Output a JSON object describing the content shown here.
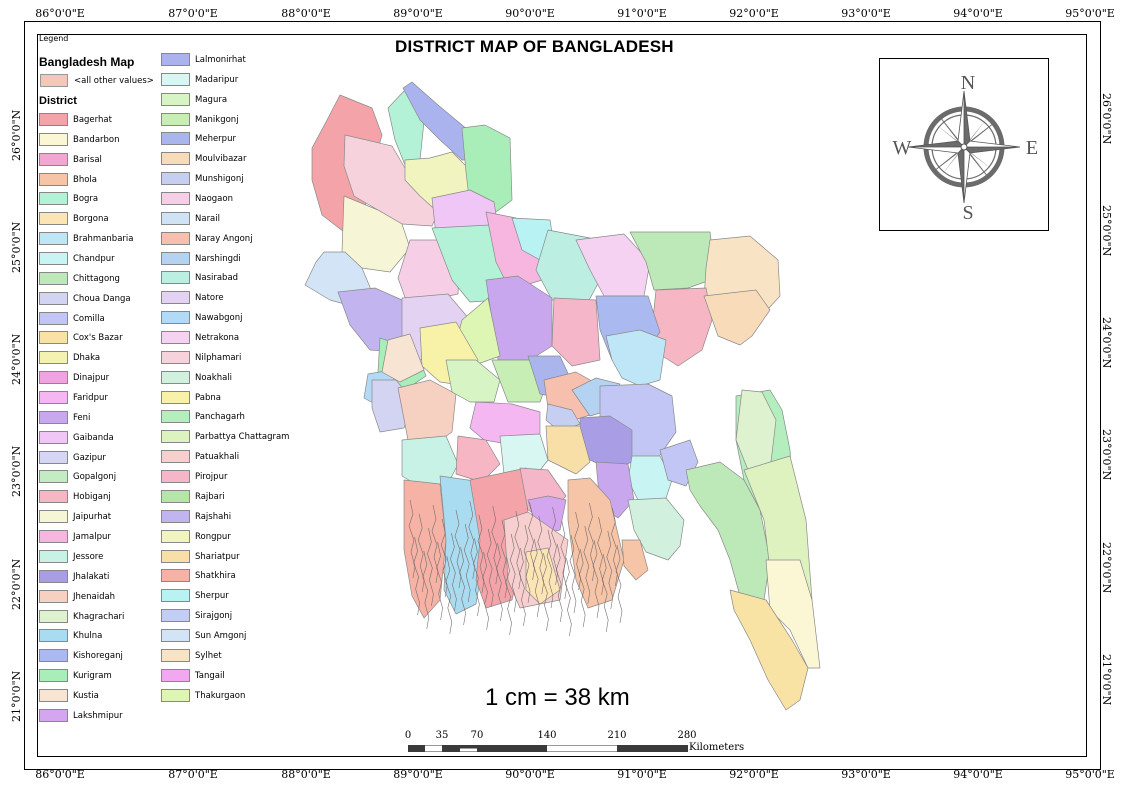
{
  "title": "DISTRICT MAP OF BANGLADESH",
  "graticule": {
    "longitudes": [
      "86°0'0\"E",
      "87°0'0\"E",
      "88°0'0\"E",
      "89°0'0\"E",
      "90°0'0\"E",
      "91°0'0\"E",
      "92°0'0\"E",
      "93°0'0\"E",
      "94°0'0\"E",
      "95°0'0\"E"
    ],
    "latitudes": [
      "26°0'0\"N",
      "25°0'0\"N",
      "24°0'0\"N",
      "23°0'0\"N",
      "22°0'0\"N",
      "21°0'0\"N"
    ]
  },
  "legend": {
    "caption": "Legend",
    "map_title": "Bangladesh Map",
    "other_label": "<all other values>",
    "other_color": "#f4c7b8",
    "district_heading": "District",
    "districts": [
      {
        "name": "Bagerhat",
        "color": "#f4a3a8"
      },
      {
        "name": "Bandarbon",
        "color": "#fbf6d4"
      },
      {
        "name": "Barisal",
        "color": "#f2a7d3"
      },
      {
        "name": "Bhola",
        "color": "#f6c4a6"
      },
      {
        "name": "Bogra",
        "color": "#b3f2d6"
      },
      {
        "name": "Borgona",
        "color": "#fbe5b5"
      },
      {
        "name": "Brahmanbaria",
        "color": "#bfe6f6"
      },
      {
        "name": "Chandpur",
        "color": "#c9f4f4"
      },
      {
        "name": "Chittagong",
        "color": "#bde9b8"
      },
      {
        "name": "Choua Danga",
        "color": "#d3d3f2"
      },
      {
        "name": "Comilla",
        "color": "#c2c6f4"
      },
      {
        "name": "Cox's Bazar",
        "color": "#f8e2a4"
      },
      {
        "name": "Dhaka",
        "color": "#f4f2b0"
      },
      {
        "name": "Dinajpur",
        "color": "#f0a3e0"
      },
      {
        "name": "Faridpur",
        "color": "#f4b7f2"
      },
      {
        "name": "Feni",
        "color": "#c9a7ee"
      },
      {
        "name": "Gaibanda",
        "color": "#efc6f6"
      },
      {
        "name": "Gazipur",
        "color": "#d5d6f4"
      },
      {
        "name": "Gopalgonj",
        "color": "#c4ecc2"
      },
      {
        "name": "Hobiganj",
        "color": "#f7b6c4"
      },
      {
        "name": "Jaipurhat",
        "color": "#f6f6d6"
      },
      {
        "name": "Jamalpur",
        "color": "#f6b6e0"
      },
      {
        "name": "Jessore",
        "color": "#c8f2e6"
      },
      {
        "name": "Jhalakati",
        "color": "#a99de6"
      },
      {
        "name": "Jhenaidah",
        "color": "#f6d0c0"
      },
      {
        "name": "Khagrachari",
        "color": "#def2cf"
      },
      {
        "name": "Khulna",
        "color": "#a9dcf0"
      },
      {
        "name": "Kishoreganj",
        "color": "#aab9ef"
      },
      {
        "name": "Kurigram",
        "color": "#a9eeb8"
      },
      {
        "name": "Kustia",
        "color": "#f8e4d2"
      },
      {
        "name": "Lakshmipur",
        "color": "#d3a6ef"
      },
      {
        "name": "Lalmonirhat",
        "color": "#aab3ee"
      },
      {
        "name": "Madaripur",
        "color": "#d8f6f2"
      },
      {
        "name": "Magura",
        "color": "#d6f4c4"
      },
      {
        "name": "Manikgonj",
        "color": "#c7eeb4"
      },
      {
        "name": "Meherpur",
        "color": "#a9b5ec"
      },
      {
        "name": "Moulvibazar",
        "color": "#f8dcba"
      },
      {
        "name": "Munshigonj",
        "color": "#c6cff2"
      },
      {
        "name": "Naogaon",
        "color": "#f6cfe6"
      },
      {
        "name": "Narail",
        "color": "#cfe3f4"
      },
      {
        "name": "Naray Angonj",
        "color": "#f6bfae"
      },
      {
        "name": "Narshingdi",
        "color": "#b4d2f2"
      },
      {
        "name": "Nasirabad",
        "color": "#bdeee2"
      },
      {
        "name": "Natore",
        "color": "#e4d2f2"
      },
      {
        "name": "Nawabgonj",
        "color": "#b2daf6"
      },
      {
        "name": "Netrakona",
        "color": "#f6d2f2"
      },
      {
        "name": "Nilphamari",
        "color": "#f6d2dc"
      },
      {
        "name": "Noakhali",
        "color": "#d2f0de"
      },
      {
        "name": "Pabna",
        "color": "#f8f2a8"
      },
      {
        "name": "Panchagarh",
        "color": "#b4eebe"
      },
      {
        "name": "Parbattya Chattagram",
        "color": "#def2c0"
      },
      {
        "name": "Patuakhali",
        "color": "#f8cfcf"
      },
      {
        "name": "Pirojpur",
        "color": "#f4b6c8"
      },
      {
        "name": "Rajbari",
        "color": "#b4e6a8"
      },
      {
        "name": "Rajshahi",
        "color": "#c2b4ee"
      },
      {
        "name": "Rongpur",
        "color": "#f2f4c0"
      },
      {
        "name": "Shariatpur",
        "color": "#f8dfa8"
      },
      {
        "name": "Shatkhira",
        "color": "#f6b2a4"
      },
      {
        "name": "Sherpur",
        "color": "#b8f2f2"
      },
      {
        "name": "Sirajgonj",
        "color": "#c2cef4"
      },
      {
        "name": "Sun Amgonj",
        "color": "#d2e4f6"
      },
      {
        "name": "Sylhet",
        "color": "#f8e4c4"
      },
      {
        "name": "Tangail",
        "color": "#f2a8f0"
      },
      {
        "name": "Thakurgaon",
        "color": "#def6b4"
      }
    ]
  },
  "compass": {
    "n": "N",
    "s": "S",
    "e": "E",
    "w": "W"
  },
  "scale": {
    "text": "1 cm = 38 km",
    "labels": [
      "0",
      "35",
      "70",
      "140",
      "210",
      "280"
    ],
    "unit": "Kilometers"
  }
}
